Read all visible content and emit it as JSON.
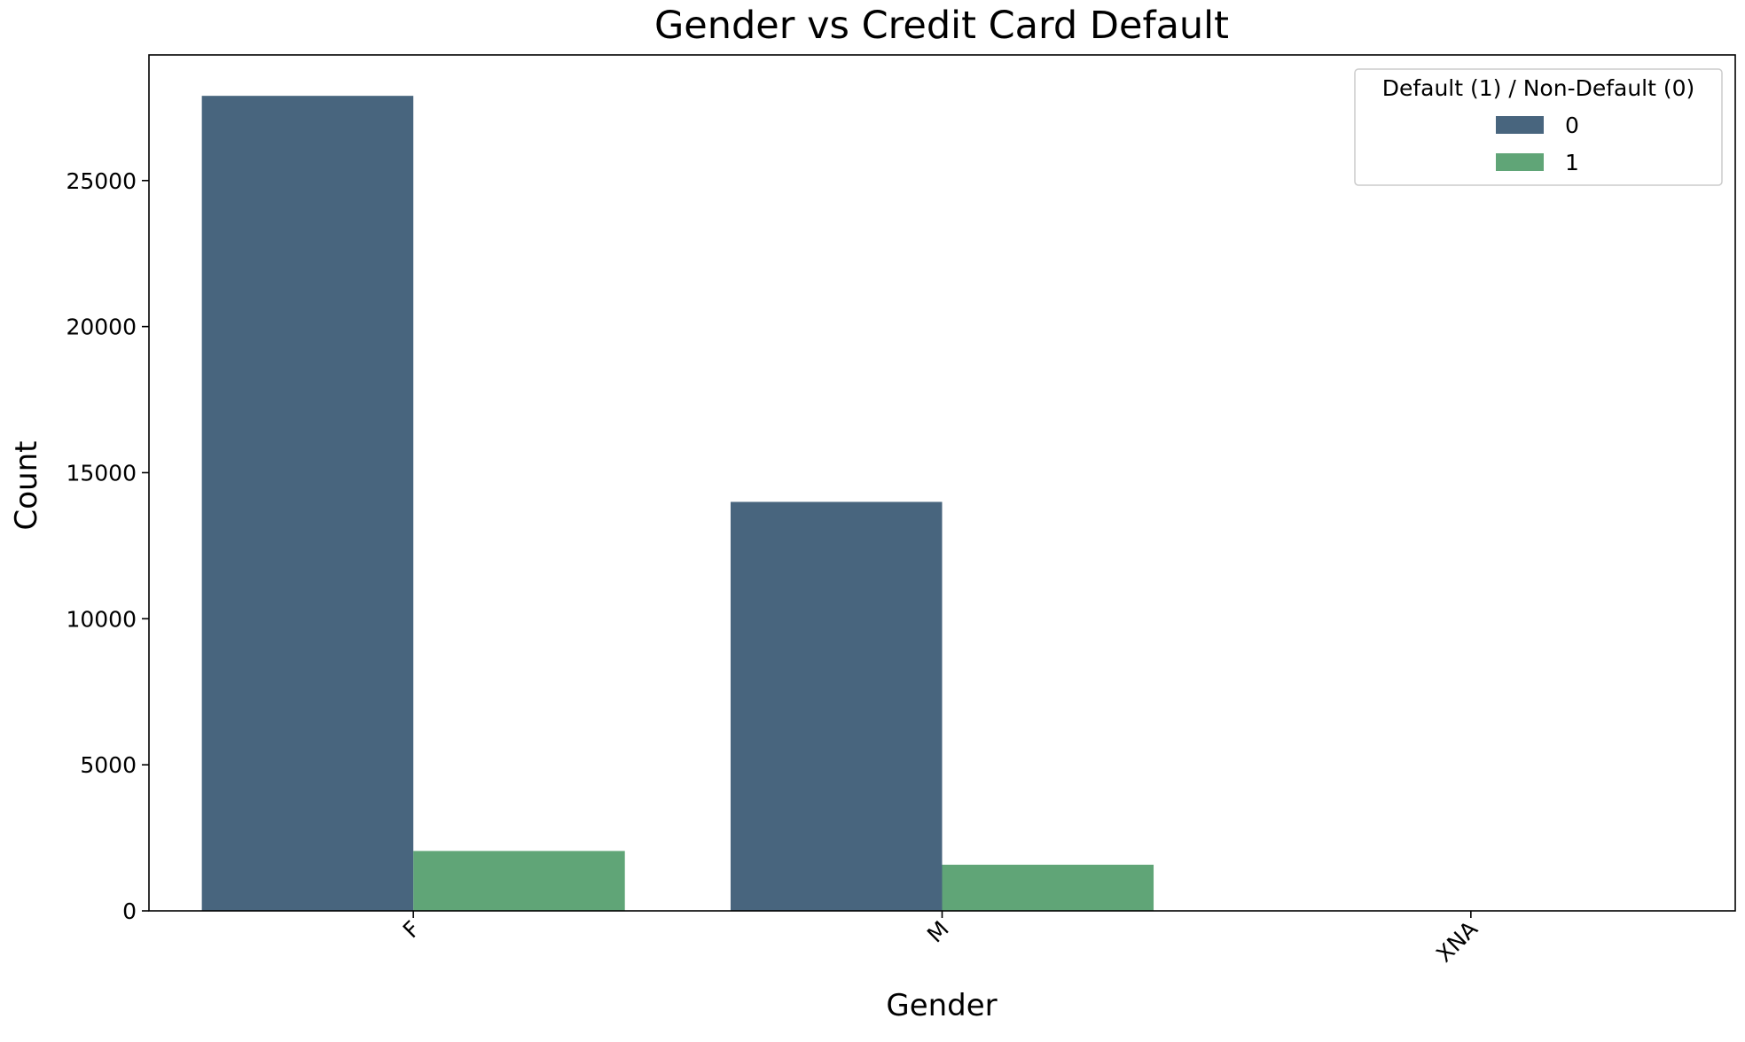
{
  "chart_data": {
    "type": "bar",
    "title": "Gender vs Credit Card Default",
    "xlabel": "Gender",
    "ylabel": "Count",
    "categories": [
      "F",
      "M",
      "XNA"
    ],
    "series": [
      {
        "name": "0",
        "values": [
          27900,
          14000,
          3
        ],
        "color": "#48657e"
      },
      {
        "name": "1",
        "values": [
          2050,
          1580,
          0
        ],
        "color": "#60a577"
      }
    ],
    "ylim": [
      0,
      29300
    ],
    "yticks": [
      0,
      5000,
      10000,
      15000,
      20000,
      25000
    ],
    "ytick_labels": [
      "0",
      "5000",
      "10000",
      "15000",
      "20000",
      "25000"
    ],
    "grid": false,
    "legend": {
      "title": "Default (1) / Non-Default (0)",
      "position": "top-right"
    }
  }
}
